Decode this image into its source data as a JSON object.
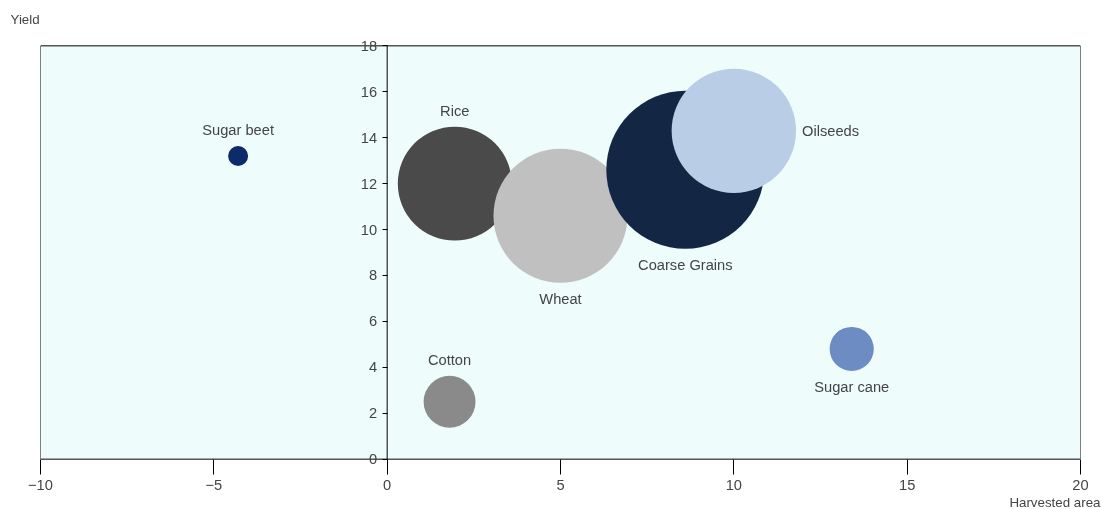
{
  "chart_data": {
    "type": "bubble",
    "xlabel": "Harvested area",
    "ylabel": "Yield",
    "xlim": [
      -10,
      20
    ],
    "ylim": [
      0,
      18
    ],
    "xticks": [
      -10,
      -5,
      0,
      5,
      10,
      15,
      20
    ],
    "yticks": [
      0,
      2,
      4,
      6,
      8,
      10,
      12,
      14,
      16,
      18
    ],
    "grid": false,
    "series": [
      {
        "name": "Sugar beet",
        "color": "#0d2a6b",
        "x": [
          -4.3
        ],
        "values": [
          13.2
        ],
        "sizes": [
          0.016
        ]
      },
      {
        "name": "Rice",
        "color": "#4a4a4a",
        "x": [
          1.95
        ],
        "values": [
          12.0
        ],
        "sizes": [
          0.52
        ]
      },
      {
        "name": "Wheat",
        "color": "#c0c0c0",
        "x": [
          5.0
        ],
        "values": [
          10.6
        ],
        "sizes": [
          0.72
        ]
      },
      {
        "name": "Coarse Grains",
        "color": "#132744",
        "x": [
          8.6
        ],
        "values": [
          12.6
        ],
        "sizes": [
          1
        ]
      },
      {
        "name": "Oilseeds",
        "color": "#b9cde6",
        "x": [
          10.0
        ],
        "values": [
          14.3
        ],
        "sizes": [
          0.62
        ]
      },
      {
        "name": "Cotton",
        "color": "#8a8a8a",
        "x": [
          1.8
        ],
        "values": [
          2.5
        ],
        "sizes": [
          0.108
        ]
      },
      {
        "name": "Sugar cane",
        "color": "#6d8cc4",
        "x": [
          13.4
        ],
        "values": [
          4.8
        ],
        "sizes": [
          0.078
        ]
      }
    ]
  }
}
